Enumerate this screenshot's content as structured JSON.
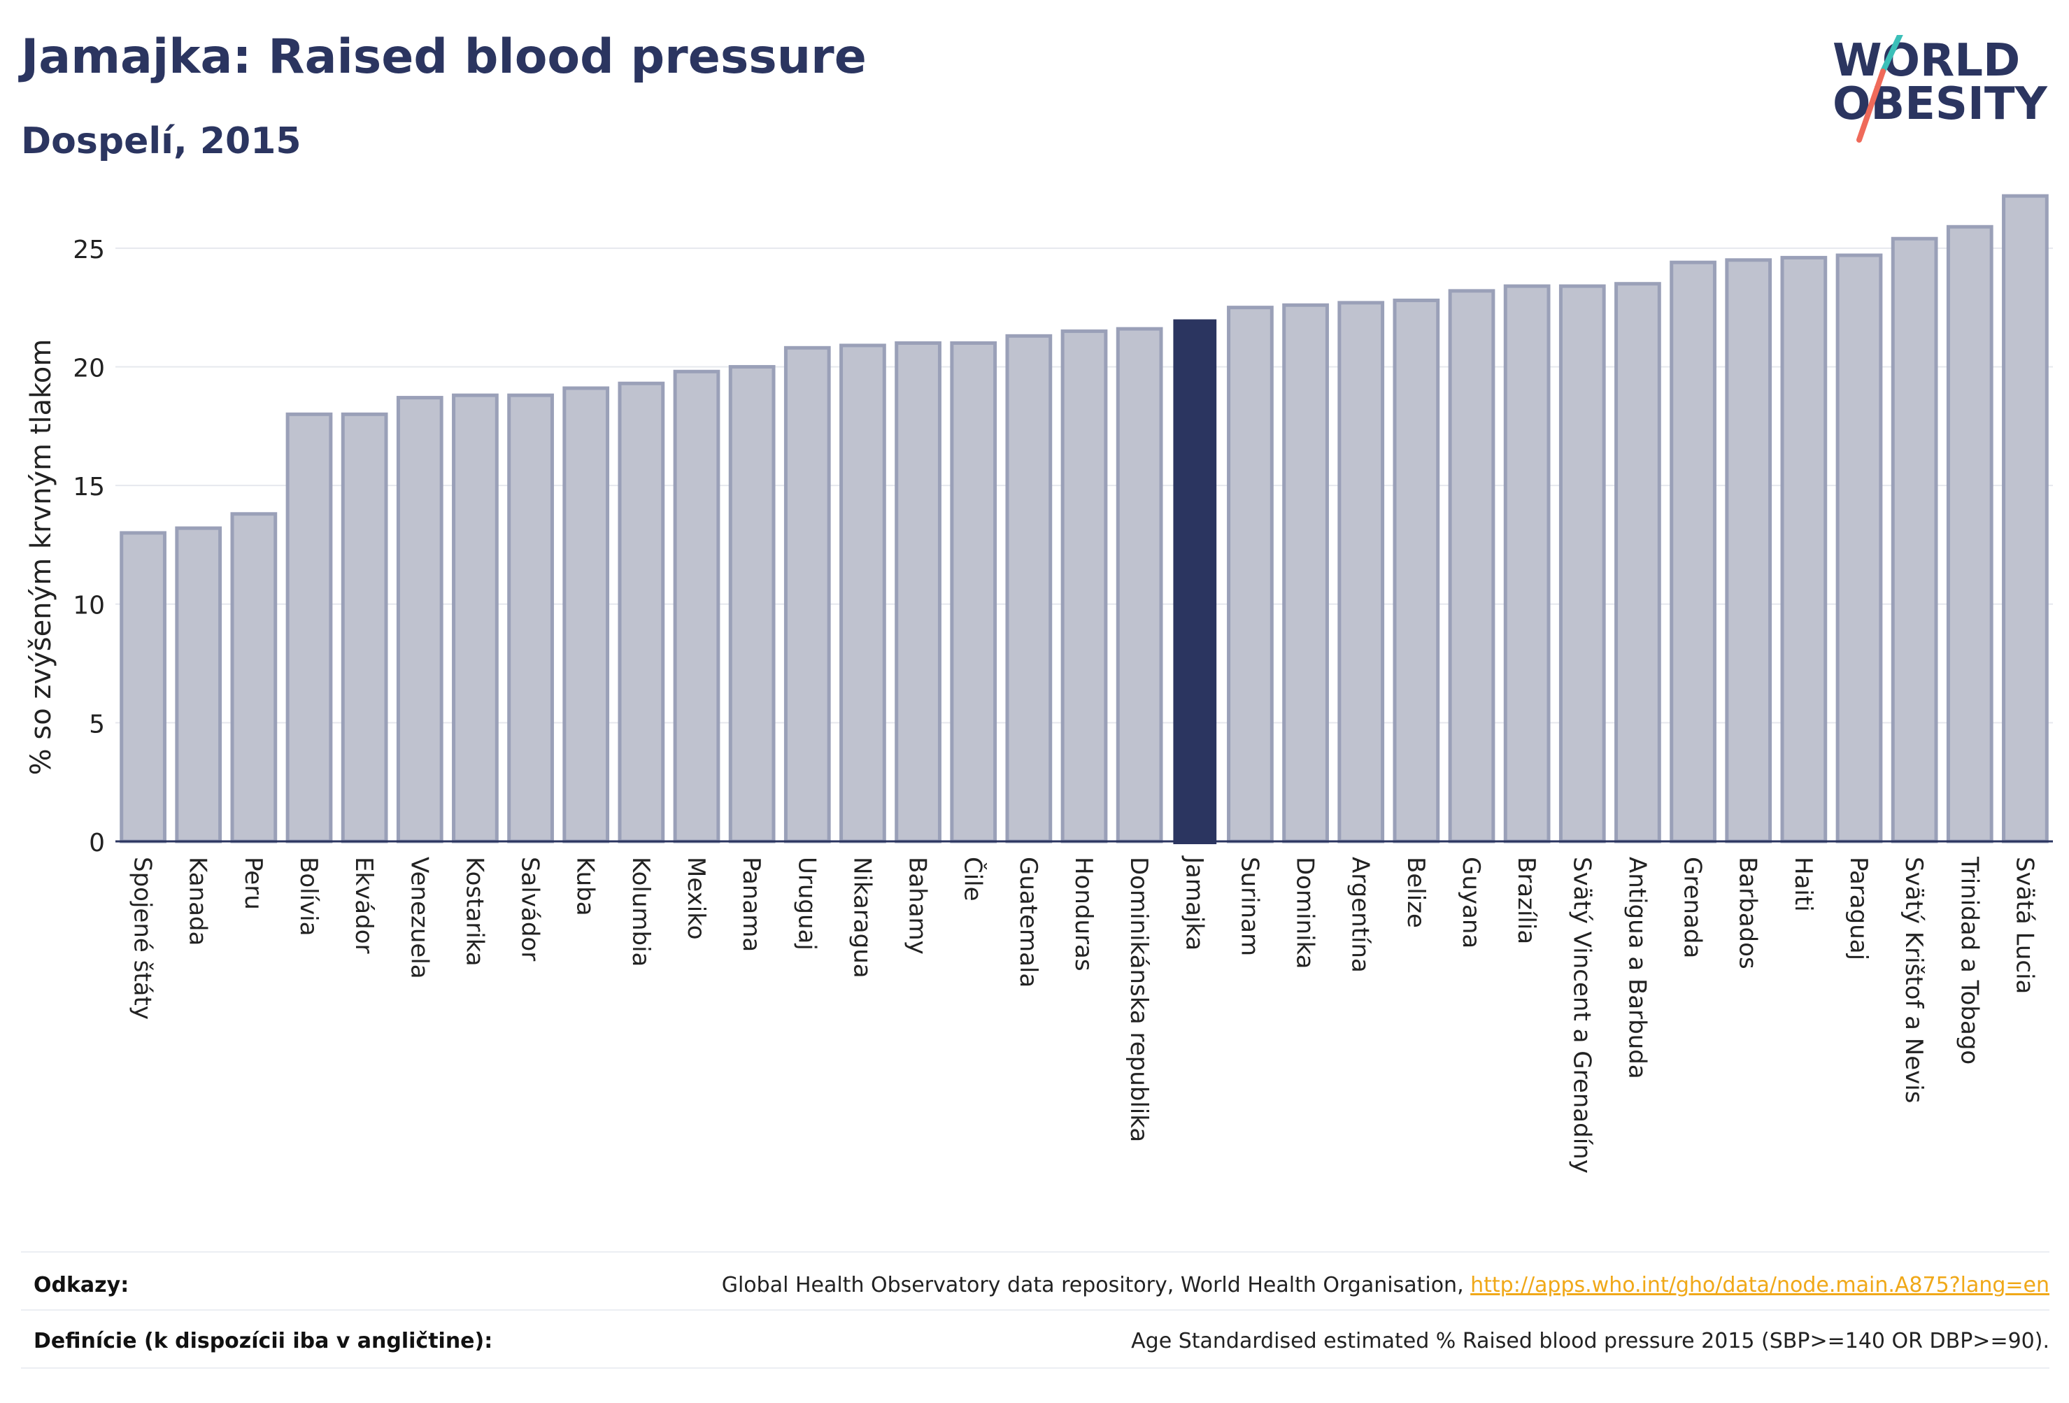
{
  "header": {
    "title": "Jamajka: Raised blood pressure",
    "subtitle": "Dospelí, 2015"
  },
  "logo": {
    "line1": "WORLD",
    "line2": "OBESITY",
    "colors": {
      "text": "#2b3560",
      "slash_top": "#3bbfb8",
      "slash_bottom": "#ef6a5a"
    }
  },
  "colors": {
    "bar_fill": "#bfc2cf",
    "bar_stroke": "#9aa0b8",
    "highlight": "#2b3560",
    "grid": "#e6e8ee",
    "axis": "#2b3560"
  },
  "chart_data": {
    "type": "bar",
    "title": "Jamajka: Raised blood pressure",
    "subtitle": "Dospelí, 2015",
    "xlabel": "",
    "ylabel": "% so zvýšeným krvným tlakom",
    "ylim": [
      0,
      27.5
    ],
    "yticks": [
      0,
      5,
      10,
      15,
      20,
      25
    ],
    "grid": true,
    "highlight_category": "Jamajka",
    "categories": [
      "Spojené štáty",
      "Kanada",
      "Peru",
      "Bolívia",
      "Ekvádor",
      "Venezuela",
      "Kostarika",
      "Salvádor",
      "Kuba",
      "Kolumbia",
      "Mexiko",
      "Panama",
      "Uruguaj",
      "Nikaragua",
      "Bahamy",
      "Čile",
      "Guatemala",
      "Honduras",
      "Dominikánska republika",
      "Jamajka",
      "Surinam",
      "Dominika",
      "Argentína",
      "Belize",
      "Guyana",
      "Brazília",
      "Svätý Vincent a Grenadíny",
      "Antigua a Barbuda",
      "Grenada",
      "Barbados",
      "Haiti",
      "Paraguaj",
      "Svätý Krištof a Nevis",
      "Trinidad a Tobago",
      "Svätá Lucia"
    ],
    "values": [
      13.0,
      13.2,
      13.8,
      18.0,
      18.0,
      18.7,
      18.8,
      18.8,
      19.1,
      19.3,
      19.8,
      20.0,
      20.8,
      20.9,
      21.0,
      21.0,
      21.3,
      21.5,
      21.6,
      22.0,
      22.5,
      22.6,
      22.7,
      22.8,
      23.2,
      23.4,
      23.4,
      23.5,
      24.4,
      24.5,
      24.6,
      24.7,
      25.4,
      25.9,
      27.2
    ]
  },
  "footer": {
    "references_label": "Odkazy:",
    "references_text": "Global Health Observatory data repository, World Health Organisation, ",
    "references_link": "http://apps.who.int/gho/data/node.main.A875?lang=en",
    "definitions_label": "Definície (k dispozícii iba v angličtine):",
    "definitions_text": "Age Standardised estimated % Raised blood pressure 2015 (SBP>=140 OR DBP>=90)."
  }
}
